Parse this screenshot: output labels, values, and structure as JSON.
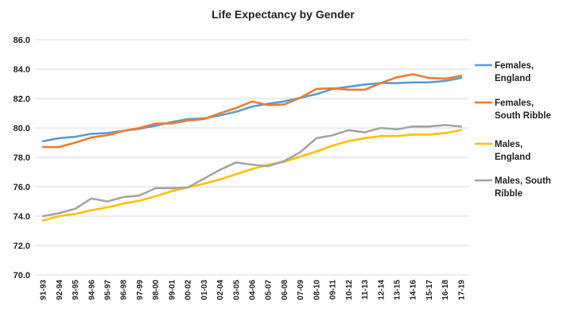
{
  "chart_data": {
    "type": "line",
    "title": "Life Expectancy by Gender",
    "xlabel": "",
    "ylabel": "",
    "ylim": [
      70.0,
      86.0
    ],
    "yticks": [
      "70.0",
      "72.0",
      "74.0",
      "76.0",
      "78.0",
      "80.0",
      "82.0",
      "84.0",
      "86.0"
    ],
    "grid": true,
    "legend_position": "right",
    "categories": [
      "91-93",
      "92-94",
      "93-95",
      "94-96",
      "95-97",
      "96-98",
      "97-99",
      "98-00",
      "99-01",
      "00-02",
      "01-03",
      "02-04",
      "03-05",
      "04-06",
      "05-07",
      "06-08",
      "07-09",
      "08-10",
      "09-11",
      "10-12",
      "11-13",
      "12-14",
      "13-15",
      "14-16",
      "15-17",
      "16-18",
      "17-19"
    ],
    "series": [
      {
        "name": "Females, England",
        "legend_lines": [
          "Females,",
          "England"
        ],
        "color": "#5b9bd5",
        "values": [
          79.1,
          79.3,
          79.4,
          79.6,
          79.65,
          79.8,
          79.95,
          80.15,
          80.4,
          80.6,
          80.65,
          80.85,
          81.1,
          81.45,
          81.65,
          81.8,
          82.05,
          82.3,
          82.65,
          82.8,
          82.95,
          83.05,
          83.05,
          83.1,
          83.1,
          83.2,
          83.4
        ]
      },
      {
        "name": "Females, South Ribble",
        "legend_lines": [
          "Females,",
          "South Ribble"
        ],
        "color": "#ed7d31",
        "values": [
          78.7,
          78.7,
          79.0,
          79.35,
          79.5,
          79.8,
          80.0,
          80.3,
          80.3,
          80.5,
          80.6,
          81.0,
          81.35,
          81.8,
          81.55,
          81.6,
          82.05,
          82.65,
          82.7,
          82.6,
          82.6,
          83.05,
          83.45,
          83.65,
          83.4,
          83.35,
          83.55
        ]
      },
      {
        "name": "Males, England",
        "legend_lines": [
          "Males,",
          "England"
        ],
        "color": "#ffc000",
        "values": [
          73.7,
          74.0,
          74.15,
          74.4,
          74.6,
          74.85,
          75.05,
          75.35,
          75.7,
          75.95,
          76.2,
          76.5,
          76.85,
          77.2,
          77.5,
          77.7,
          78.05,
          78.4,
          78.8,
          79.1,
          79.3,
          79.45,
          79.45,
          79.55,
          79.55,
          79.65,
          79.85
        ]
      },
      {
        "name": "Males, South Ribble",
        "legend_lines": [
          "Males, South",
          "Ribble"
        ],
        "color": "#a5a5a5",
        "values": [
          74.0,
          74.2,
          74.5,
          75.2,
          75.0,
          75.3,
          75.4,
          75.9,
          75.9,
          75.95,
          76.55,
          77.15,
          77.65,
          77.5,
          77.4,
          77.75,
          78.35,
          79.3,
          79.5,
          79.85,
          79.7,
          80.0,
          79.9,
          80.1,
          80.1,
          80.2,
          80.1
        ]
      }
    ]
  }
}
